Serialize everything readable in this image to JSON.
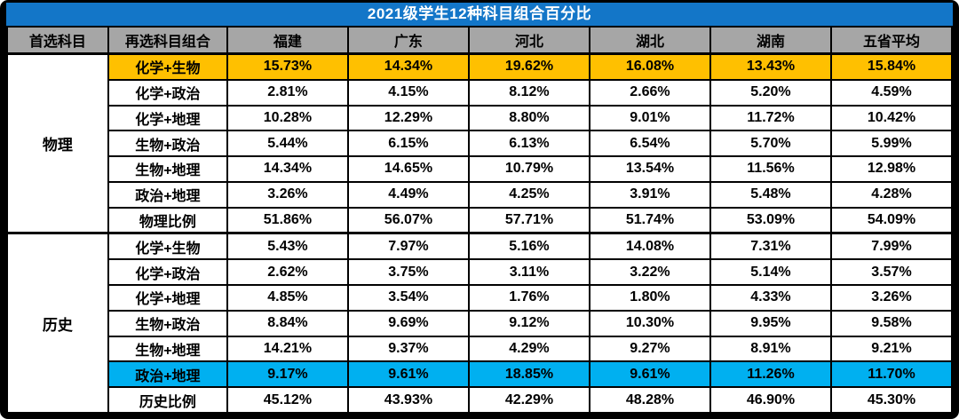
{
  "title": "2021级学生12种科目组合百分比",
  "colors": {
    "title_bg": "#1376C8",
    "header_bg": "#A6A6A6",
    "highlight_orange": "#FFC000",
    "highlight_cyan": "#00B0F0",
    "border": "#000000"
  },
  "table": {
    "headers": [
      "首选科目",
      "再选科目组合",
      "福建",
      "广东",
      "河北",
      "湖北",
      "湖南",
      "五省平均"
    ],
    "sections": [
      {
        "first_choice": "物理",
        "rows": [
          {
            "combo": "化学+生物",
            "values": [
              "15.73%",
              "14.34%",
              "19.62%",
              "16.08%",
              "13.43%",
              "15.84%"
            ],
            "highlight": "orange"
          },
          {
            "combo": "化学+政治",
            "values": [
              "2.81%",
              "4.15%",
              "8.12%",
              "2.66%",
              "5.20%",
              "4.59%"
            ]
          },
          {
            "combo": "化学+地理",
            "values": [
              "10.28%",
              "12.29%",
              "8.80%",
              "9.01%",
              "11.72%",
              "10.42%"
            ]
          },
          {
            "combo": "生物+政治",
            "values": [
              "5.44%",
              "6.15%",
              "6.13%",
              "6.54%",
              "5.70%",
              "5.99%"
            ]
          },
          {
            "combo": "生物+地理",
            "values": [
              "14.34%",
              "14.65%",
              "10.79%",
              "13.54%",
              "11.56%",
              "12.98%"
            ]
          },
          {
            "combo": "政治+地理",
            "values": [
              "3.26%",
              "4.49%",
              "4.25%",
              "3.91%",
              "5.48%",
              "4.28%"
            ]
          },
          {
            "combo": "物理比例",
            "values": [
              "51.86%",
              "56.07%",
              "57.71%",
              "51.74%",
              "53.09%",
              "54.09%"
            ],
            "is_total": true
          }
        ]
      },
      {
        "first_choice": "历史",
        "rows": [
          {
            "combo": "化学+生物",
            "values": [
              "5.43%",
              "7.97%",
              "5.16%",
              "14.08%",
              "7.31%",
              "7.99%"
            ]
          },
          {
            "combo": "化学+政治",
            "values": [
              "2.62%",
              "3.75%",
              "3.11%",
              "3.22%",
              "5.14%",
              "3.57%"
            ]
          },
          {
            "combo": "化学+地理",
            "values": [
              "4.85%",
              "3.54%",
              "1.76%",
              "1.80%",
              "4.33%",
              "3.26%"
            ]
          },
          {
            "combo": "生物+政治",
            "values": [
              "8.84%",
              "9.69%",
              "9.12%",
              "10.30%",
              "9.95%",
              "9.58%"
            ]
          },
          {
            "combo": "生物+地理",
            "values": [
              "14.21%",
              "9.37%",
              "4.29%",
              "9.27%",
              "8.91%",
              "9.21%"
            ]
          },
          {
            "combo": "政治+地理",
            "values": [
              "9.17%",
              "9.61%",
              "18.85%",
              "9.61%",
              "11.26%",
              "11.70%"
            ],
            "highlight": "cyan"
          },
          {
            "combo": "历史比例",
            "values": [
              "45.12%",
              "43.93%",
              "42.29%",
              "48.28%",
              "46.90%",
              "45.30%"
            ],
            "is_total": true
          }
        ]
      }
    ]
  },
  "chart_data": {
    "type": "table",
    "title": "2021级学生12种科目组合百分比",
    "unit": "%",
    "columns": [
      "首选科目",
      "再选科目组合",
      "福建",
      "广东",
      "河北",
      "湖北",
      "湖南",
      "五省平均"
    ],
    "rows": [
      [
        "物理",
        "化学+生物",
        15.73,
        14.34,
        19.62,
        16.08,
        13.43,
        15.84
      ],
      [
        "物理",
        "化学+政治",
        2.81,
        4.15,
        8.12,
        2.66,
        5.2,
        4.59
      ],
      [
        "物理",
        "化学+地理",
        10.28,
        12.29,
        8.8,
        9.01,
        11.72,
        10.42
      ],
      [
        "物理",
        "生物+政治",
        5.44,
        6.15,
        6.13,
        6.54,
        5.7,
        5.99
      ],
      [
        "物理",
        "生物+地理",
        14.34,
        14.65,
        10.79,
        13.54,
        11.56,
        12.98
      ],
      [
        "物理",
        "政治+地理",
        3.26,
        4.49,
        4.25,
        3.91,
        5.48,
        4.28
      ],
      [
        "物理",
        "物理比例",
        51.86,
        56.07,
        57.71,
        51.74,
        53.09,
        54.09
      ],
      [
        "历史",
        "化学+生物",
        5.43,
        7.97,
        5.16,
        14.08,
        7.31,
        7.99
      ],
      [
        "历史",
        "化学+政治",
        2.62,
        3.75,
        3.11,
        3.22,
        5.14,
        3.57
      ],
      [
        "历史",
        "化学+地理",
        4.85,
        3.54,
        1.76,
        1.8,
        4.33,
        3.26
      ],
      [
        "历史",
        "生物+政治",
        8.84,
        9.69,
        9.12,
        10.3,
        9.95,
        9.58
      ],
      [
        "历史",
        "生物+地理",
        14.21,
        9.37,
        4.29,
        9.27,
        8.91,
        9.21
      ],
      [
        "历史",
        "政治+地理",
        9.17,
        9.61,
        18.85,
        9.61,
        11.26,
        11.7
      ],
      [
        "历史",
        "历史比例",
        45.12,
        43.93,
        42.29,
        48.28,
        46.9,
        45.3
      ]
    ],
    "highlighted_rows": [
      {
        "row": "物理 化学+生物",
        "color": "#FFC000"
      },
      {
        "row": "历史 政治+地理",
        "color": "#00B0F0"
      }
    ],
    "legend_position": "none",
    "grid": true
  }
}
